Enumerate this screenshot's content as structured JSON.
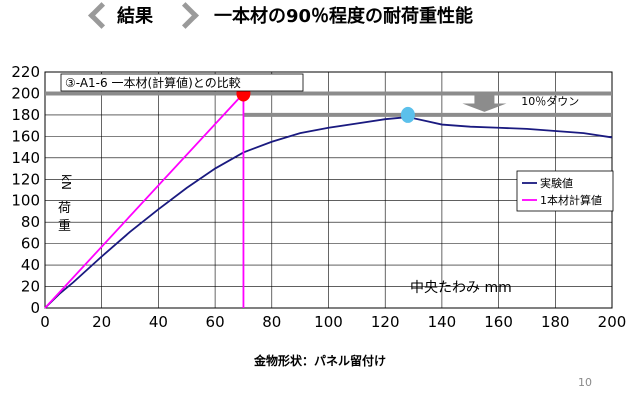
{
  "header": {
    "results_label": "結果",
    "title": "一本材の90％程度の耐荷重性能",
    "prev_icon": "chevron-left-icon",
    "next_icon": "chevron-right-icon"
  },
  "chart_data": {
    "type": "line",
    "title": "③-A1-6 一本材(計算値)との比較",
    "xlabel": "中央たわみ mm",
    "ylabel": "荷重 kN",
    "xlim": [
      0,
      200
    ],
    "ylim": [
      0,
      220
    ],
    "x_ticks": [
      "0",
      "20",
      "40",
      "60",
      "80",
      "100",
      "120",
      "140",
      "160",
      "180",
      "200"
    ],
    "y_ticks": [
      "0",
      "20",
      "40",
      "60",
      "80",
      "100",
      "120",
      "140",
      "160",
      "180",
      "200",
      "220"
    ],
    "grid": true,
    "legend_position": "right",
    "series": [
      {
        "name": "実験値",
        "color": "#1a1a80",
        "x": [
          0,
          5,
          10,
          20,
          30,
          40,
          50,
          60,
          70,
          80,
          90,
          100,
          110,
          120,
          128,
          135,
          140,
          150,
          160,
          170,
          180,
          190,
          200
        ],
        "y": [
          0,
          13,
          24,
          48,
          71,
          92,
          112,
          130,
          145,
          155,
          163,
          168,
          172,
          176,
          178,
          174,
          171,
          169,
          168,
          167,
          165,
          163,
          159
        ]
      },
      {
        "name": "1本材計算値",
        "color": "#ff00ff",
        "x": [
          0,
          70,
          70
        ],
        "y": [
          0,
          200,
          0
        ]
      }
    ],
    "reference_lines": [
      {
        "y": 200,
        "x_start": 0,
        "x_end": 200,
        "color": "#8c8c8c"
      },
      {
        "y": 180,
        "x_start": 70,
        "x_end": 200,
        "color": "#8c8c8c"
      }
    ],
    "markers": [
      {
        "x": 70,
        "y": 200,
        "color": "#ff0000"
      },
      {
        "x": 128,
        "y": 180,
        "color": "#5bc0eb"
      }
    ],
    "annotations": {
      "arrow_label": "10％ダウン",
      "arrow_icon": "down-arrow-icon"
    }
  },
  "caption": "金物形状：パネル留付け",
  "page_number": "10"
}
